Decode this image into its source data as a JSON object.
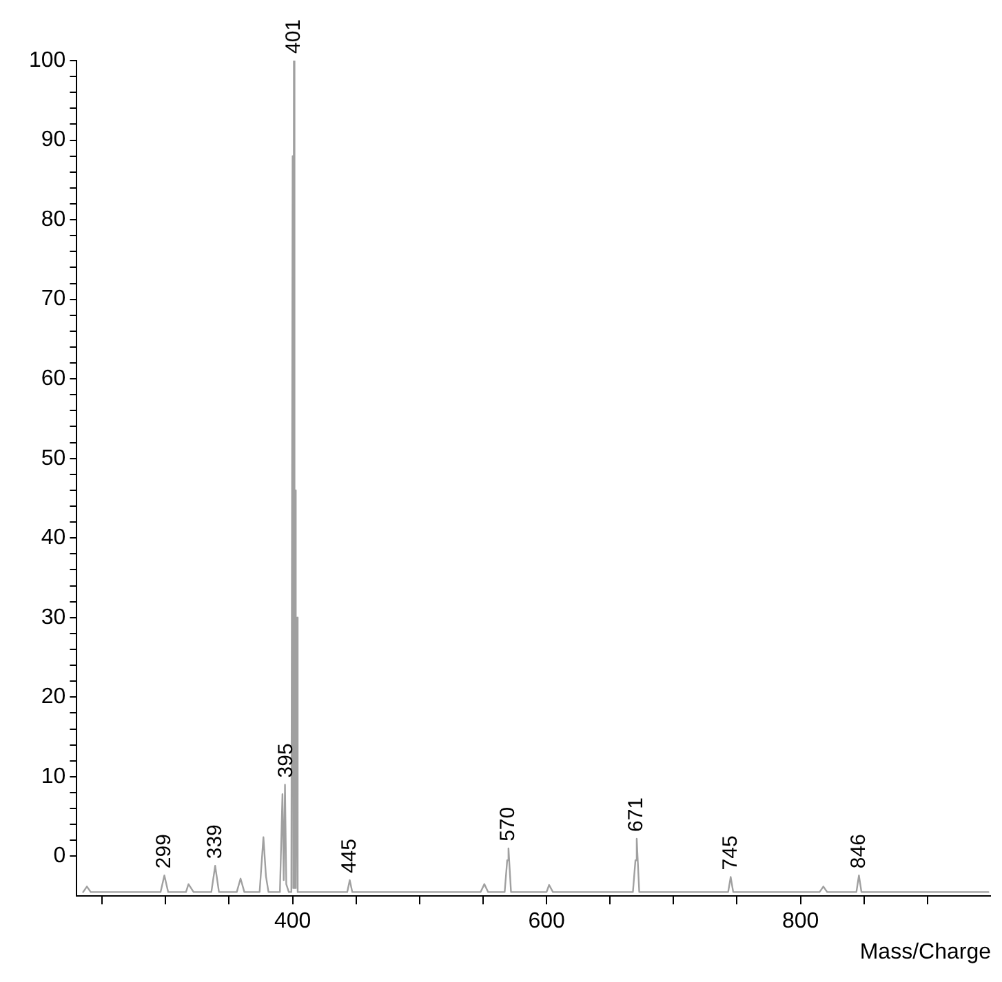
{
  "chart_data": {
    "type": "line",
    "xlabel": "Mass/Charge",
    "series": [
      {
        "color": "#a0a0a0",
        "x": [
          235,
          238,
          241,
          296,
          299,
          302,
          316,
          318,
          322,
          336,
          339,
          342,
          356,
          359,
          362,
          374,
          377,
          379,
          381,
          390,
          392,
          393,
          394,
          395,
          397,
          399,
          400,
          400.5,
          401,
          401.5,
          402,
          402.5,
          403,
          404,
          443,
          445,
          447,
          548,
          551,
          554,
          567,
          569,
          570,
          572,
          600,
          602,
          605,
          668,
          670,
          671,
          673,
          743,
          745,
          747,
          815,
          818,
          821,
          844,
          846,
          848,
          948
        ],
        "values": [
          -4.5,
          -3.8,
          -4.5,
          -4.5,
          -2.4,
          -4.5,
          -4.5,
          -3.5,
          -4.5,
          -4.5,
          -1.2,
          -4.5,
          -4.5,
          -2.8,
          -4.5,
          -4.5,
          2.4,
          -2.5,
          -4.5,
          -4.5,
          7.8,
          -3,
          9,
          -3.5,
          -4.5,
          -4.5,
          88,
          -4,
          100,
          -4,
          46,
          -4,
          30,
          -4.5,
          -4.5,
          -3,
          -4.5,
          -4.5,
          -3.5,
          -4.5,
          -4.5,
          -0.5,
          1,
          -4.5,
          -4.5,
          -3.6,
          -4.5,
          -4.5,
          -0.5,
          2.2,
          -4.5,
          -4.5,
          -2.6,
          -4.5,
          -4.5,
          -3.8,
          -4.5,
          -4.5,
          -2.4,
          -4.5,
          -4.5
        ]
      }
    ],
    "annotations": [
      {
        "text": "299",
        "x": 299,
        "y": -2.4
      },
      {
        "text": "339",
        "x": 339,
        "y": -1.2
      },
      {
        "text": "395",
        "x": 395,
        "y": 9
      },
      {
        "text": "401",
        "x": 401,
        "y": 100
      },
      {
        "text": "445",
        "x": 445,
        "y": -3
      },
      {
        "text": "570",
        "x": 570,
        "y": 1
      },
      {
        "text": "671",
        "x": 671,
        "y": 2.2
      },
      {
        "text": "745",
        "x": 745,
        "y": -2.6
      },
      {
        "text": "846",
        "x": 846,
        "y": -2.4
      }
    ],
    "xlim": [
      230,
      950
    ],
    "xticks": [
      {
        "value": 250,
        "label": null
      },
      {
        "value": 300,
        "label": null
      },
      {
        "value": 350,
        "label": null
      },
      400,
      {
        "value": 450,
        "label": null
      },
      {
        "value": 500,
        "label": null
      },
      {
        "value": 550,
        "label": null
      },
      600,
      {
        "value": 650,
        "label": null
      },
      {
        "value": 700,
        "label": null
      },
      {
        "value": 750,
        "label": null
      },
      800,
      {
        "value": 850,
        "label": null
      },
      {
        "value": 900,
        "label": null
      }
    ],
    "ylim": [
      -5,
      100
    ],
    "yticks": [
      0,
      {
        "value": 2,
        "label": null
      },
      {
        "value": 4,
        "label": null
      },
      {
        "value": 6,
        "label": null
      },
      {
        "value": 8,
        "label": null
      },
      10,
      {
        "value": 12,
        "label": null
      },
      {
        "value": 14,
        "label": null
      },
      {
        "value": 16,
        "label": null
      },
      {
        "value": 18,
        "label": null
      },
      20,
      {
        "value": 22,
        "label": null
      },
      {
        "value": 24,
        "label": null
      },
      {
        "value": 26,
        "label": null
      },
      {
        "value": 28,
        "label": null
      },
      30,
      {
        "value": 32,
        "label": null
      },
      {
        "value": 34,
        "label": null
      },
      {
        "value": 36,
        "label": null
      },
      {
        "value": 38,
        "label": null
      },
      40,
      {
        "value": 42,
        "label": null
      },
      {
        "value": 44,
        "label": null
      },
      {
        "value": 46,
        "label": null
      },
      {
        "value": 48,
        "label": null
      },
      50,
      {
        "value": 52,
        "label": null
      },
      {
        "value": 54,
        "label": null
      },
      {
        "value": 56,
        "label": null
      },
      {
        "value": 58,
        "label": null
      },
      60,
      {
        "value": 62,
        "label": null
      },
      {
        "value": 64,
        "label": null
      },
      {
        "value": 66,
        "label": null
      },
      {
        "value": 68,
        "label": null
      },
      70,
      {
        "value": 72,
        "label": null
      },
      {
        "value": 74,
        "label": null
      },
      {
        "value": 76,
        "label": null
      },
      {
        "value": 78,
        "label": null
      },
      80,
      {
        "value": 82,
        "label": null
      },
      {
        "value": 84,
        "label": null
      },
      {
        "value": 86,
        "label": null
      },
      {
        "value": 88,
        "label": null
      },
      90,
      {
        "value": 92,
        "label": null
      },
      {
        "value": 94,
        "label": null
      },
      {
        "value": 96,
        "label": null
      },
      {
        "value": 98,
        "label": null
      },
      100
    ],
    "grid": false,
    "legend": false,
    "marker": "none",
    "line_style": "solid"
  }
}
